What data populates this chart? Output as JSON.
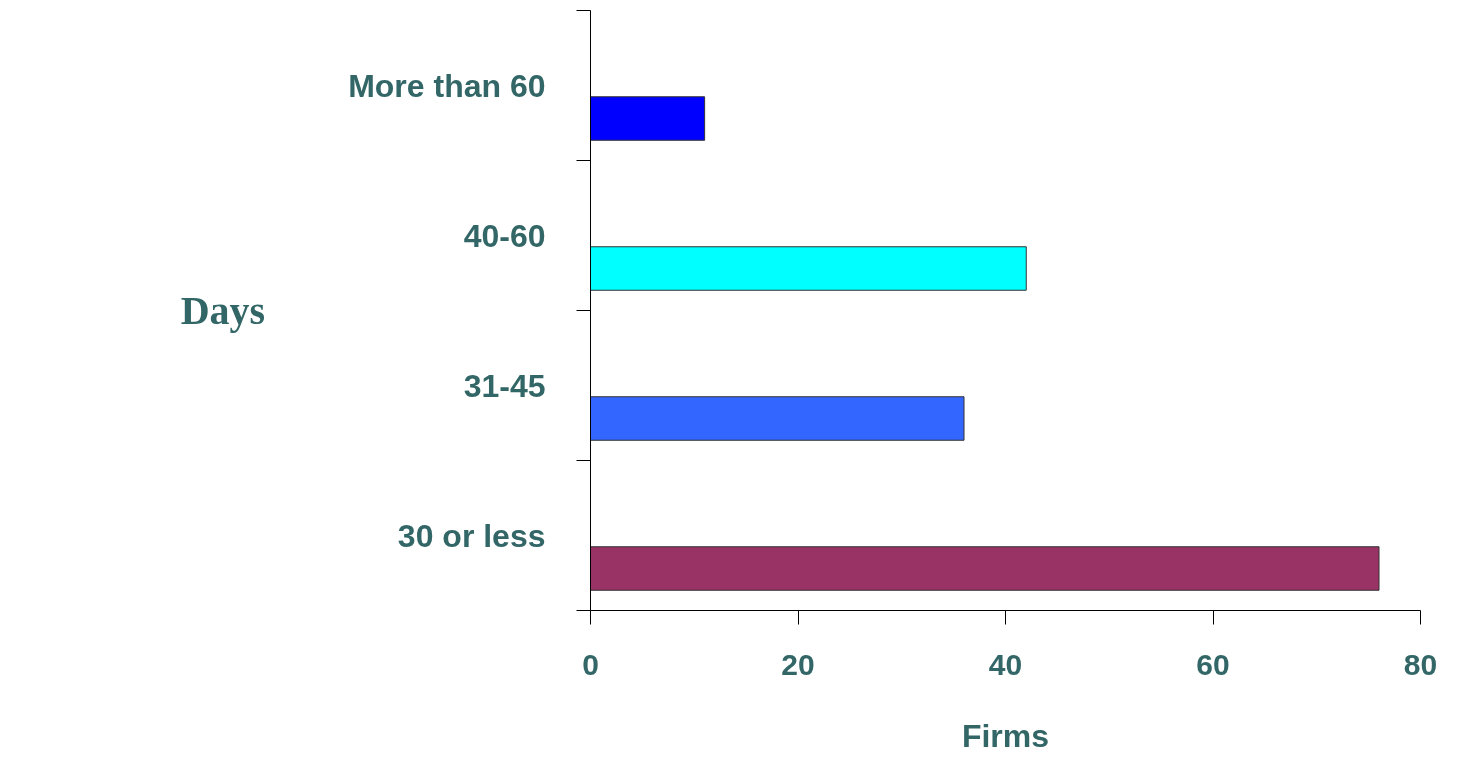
{
  "chart_data": {
    "type": "bar",
    "orientation": "horizontal",
    "xlabel": "Firms",
    "ylabel": "Days",
    "categories": [
      "More than 60",
      "40-60",
      "31-45",
      "30 or less"
    ],
    "values": [
      11,
      42,
      36,
      76
    ],
    "colors": [
      "#0000ff",
      "#00ffff",
      "#3366ff",
      "#993366"
    ],
    "xlim": [
      0,
      80
    ],
    "xticks": [
      0,
      20,
      40,
      60,
      80
    ],
    "grid": false
  }
}
